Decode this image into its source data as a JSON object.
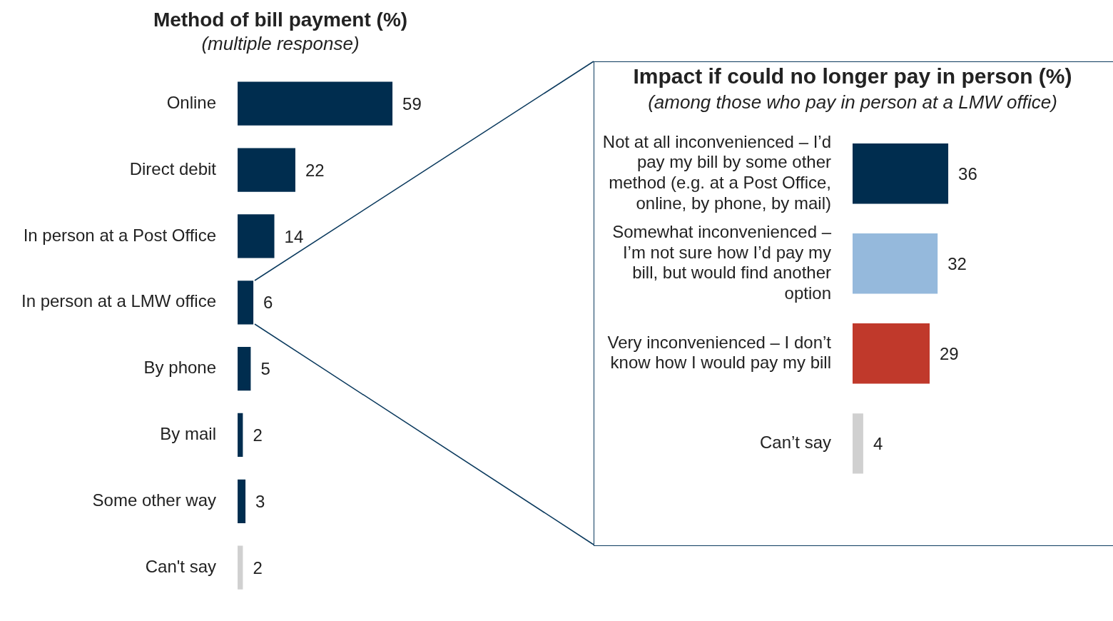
{
  "chart_data": [
    {
      "type": "bar",
      "orientation": "horizontal",
      "title": "Method of bill payment (%)",
      "subtitle": "(multiple response)",
      "categories": [
        "Online",
        "Direct debit",
        "In person at a Post Office",
        "In person at a LMW office",
        "By phone",
        "By mail",
        "Some other way",
        "Can't say"
      ],
      "values": [
        59,
        22,
        14,
        6,
        5,
        2,
        3,
        2
      ],
      "colors": [
        "#002d4f",
        "#002d4f",
        "#002d4f",
        "#002d4f",
        "#002d4f",
        "#002d4f",
        "#002d4f",
        "#d0d0d0"
      ],
      "data_labels": true
    },
    {
      "type": "bar",
      "orientation": "horizontal",
      "title": "Impact if could no longer pay in person (%)",
      "subtitle": "(among those who pay in person at a LMW office)",
      "categories": [
        "Not at all inconvenienced – I’d pay my bill by some other method (e.g. at a Post Office, online, by phone, by mail)",
        "Somewhat inconvenienced – I’m not sure how I’d pay my bill, but would find another option",
        "Very inconvenienced – I don’t know how I would pay my bill",
        "Can’t say"
      ],
      "values": [
        36,
        32,
        29,
        4
      ],
      "colors": [
        "#002d4f",
        "#95b9dc",
        "#c0392b",
        "#d0d0d0"
      ],
      "data_labels": true
    }
  ]
}
